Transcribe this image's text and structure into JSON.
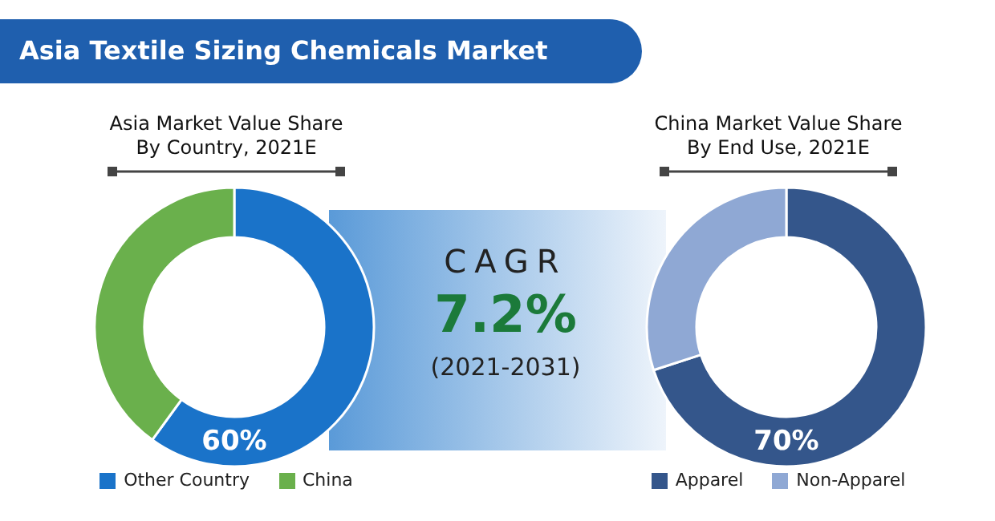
{
  "chart_data": [
    {
      "type": "donut",
      "title": "Asia Market Value Share\nBy Country, 2021E",
      "categories": [
        "Other Country",
        "China"
      ],
      "values": [
        60,
        40
      ],
      "colors": [
        "#1a73c9",
        "#6ab04c"
      ],
      "value_labels": [
        "60%",
        null
      ],
      "legend": "bottom"
    },
    {
      "type": "other",
      "title": "Asia Textile Sizing Chemicals Market",
      "annotations": [
        "CAGR",
        "7.2%",
        "(2021-2031)"
      ]
    },
    {
      "type": "donut",
      "title": "China Market Value Share\nBy End Use, 2021E",
      "categories": [
        "Apparel",
        "Non-Apparel"
      ],
      "values": [
        70,
        30
      ],
      "colors": [
        "#34568b",
        "#8fa8d4"
      ],
      "value_labels": [
        "70%",
        null
      ],
      "legend": "bottom"
    }
  ]
}
